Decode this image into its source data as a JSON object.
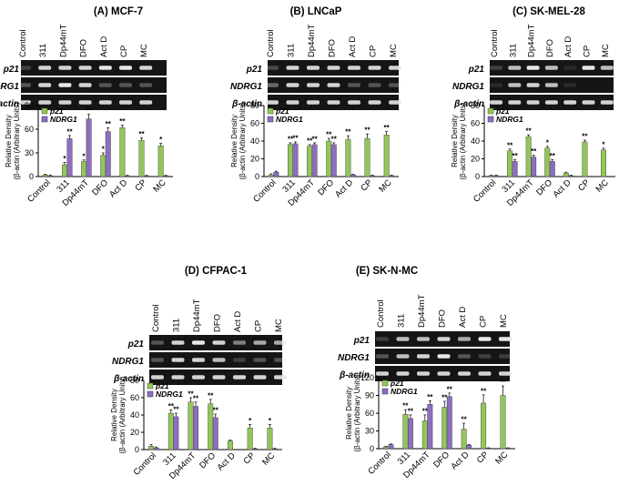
{
  "colors": {
    "p21": "#93c65a",
    "ndrg1": "#8d6ebf",
    "gel_bg": "#151515",
    "band": "#e8e8e8",
    "axis": "#000000"
  },
  "legend": {
    "series_a": "p21",
    "series_b": "NDRG1"
  },
  "chart_data": [
    {
      "id": "A",
      "type": "bar",
      "title": "(A) MCF-7",
      "categories": [
        "Control",
        "311",
        "Dp44mT",
        "DFO",
        "Act D",
        "CP",
        "MC"
      ],
      "gel_rows": [
        "p21",
        "NDRG1",
        "β-actin"
      ],
      "ylabel": "Relative Density (β-actin (Arbitrary Units)",
      "ylim": [
        0,
        90
      ],
      "yticks": [
        0,
        30,
        60,
        90
      ],
      "series": [
        {
          "name": "p21",
          "values": [
            2,
            15,
            19,
            27,
            62,
            46,
            39
          ],
          "errors": [
            1,
            3,
            2,
            3,
            3,
            3,
            3
          ],
          "stars": [
            "",
            "*",
            "*",
            "*",
            "**",
            "**",
            "*"
          ]
        },
        {
          "name": "NDRG1",
          "values": [
            1,
            48,
            73,
            57,
            1,
            1,
            1
          ],
          "errors": [
            1,
            4,
            6,
            5,
            0.5,
            0.5,
            0.5
          ],
          "stars": [
            "",
            "**",
            "**",
            "**",
            "",
            "",
            ""
          ]
        }
      ]
    },
    {
      "id": "B",
      "type": "bar",
      "title": "(B) LNCaP",
      "categories": [
        "Control",
        "311",
        "Dp44mT",
        "DFO",
        "Act D",
        "CP",
        "MC"
      ],
      "gel_rows": [
        "p21",
        "NDRG1",
        "β-actin"
      ],
      "ylabel": "Relative Density (β-actin (Arbitrary Units)",
      "ylim": [
        0,
        80
      ],
      "yticks": [
        0,
        20,
        40,
        60,
        80
      ],
      "series": [
        {
          "name": "p21",
          "values": [
            2,
            36,
            34,
            40,
            42,
            43,
            47
          ],
          "errors": [
            1,
            2,
            2,
            3,
            4,
            5,
            4
          ],
          "stars": [
            "",
            "**",
            "**",
            "**",
            "**",
            "**",
            "**"
          ]
        },
        {
          "name": "NDRG1",
          "values": [
            5,
            37,
            36,
            36,
            2,
            1,
            1
          ],
          "errors": [
            1,
            2,
            2,
            2,
            0.5,
            0.5,
            0.5
          ],
          "stars": [
            "",
            "**",
            "**",
            "**",
            "",
            "",
            ""
          ]
        }
      ]
    },
    {
      "id": "C",
      "type": "bar",
      "title": "(C) SK-MEL-28",
      "categories": [
        "Control",
        "311",
        "Dp44mT",
        "DFO",
        "Act D",
        "CP",
        "MC"
      ],
      "gel_rows": [
        "p21",
        "NDRG1",
        "β-actin"
      ],
      "ylabel": "Relative Density (β-actin (Arbitrary Units)",
      "ylim": [
        0,
        80
      ],
      "yticks": [
        0,
        20,
        40,
        60,
        80
      ],
      "series": [
        {
          "name": "p21",
          "values": [
            1,
            29,
            45,
            32,
            4,
            39,
            30
          ],
          "errors": [
            0.5,
            2,
            2,
            2,
            1,
            2,
            2
          ],
          "stars": [
            "",
            "**",
            "**",
            "*",
            "",
            "**",
            "*"
          ]
        },
        {
          "name": "NDRG1",
          "values": [
            1,
            17,
            22,
            17,
            1,
            0,
            0
          ],
          "errors": [
            0.5,
            2,
            2,
            2,
            0.5,
            0,
            0
          ],
          "stars": [
            "",
            "**",
            "**",
            "**",
            "",
            "",
            ""
          ]
        }
      ]
    },
    {
      "id": "D",
      "type": "bar",
      "title": "(D) CFPAC-1",
      "categories": [
        "Control",
        "311",
        "Dp44mT",
        "DFO",
        "Act D",
        "CP",
        "MC"
      ],
      "gel_rows": [
        "p21",
        "NDRG1",
        "β-actin"
      ],
      "ylabel": "Relative Density (β-actin (Arbitrary Units)",
      "ylim": [
        0,
        80
      ],
      "yticks": [
        0,
        20,
        40,
        60,
        80
      ],
      "series": [
        {
          "name": "p21",
          "values": [
            4,
            42,
            55,
            53,
            10,
            25,
            25
          ],
          "errors": [
            2,
            4,
            5,
            5,
            1,
            4,
            4
          ],
          "stars": [
            "",
            "**",
            "**",
            "**",
            "",
            "*",
            "*"
          ]
        },
        {
          "name": "NDRG1",
          "values": [
            2,
            38,
            50,
            37,
            0,
            1,
            1
          ],
          "errors": [
            1,
            4,
            5,
            4,
            0,
            0.5,
            0.5
          ],
          "stars": [
            "",
            "**",
            "**",
            "**",
            "",
            "",
            ""
          ]
        }
      ]
    },
    {
      "id": "E",
      "type": "bar",
      "title": "(E) SK-N-MC",
      "categories": [
        "Control",
        "311",
        "Dp44mT",
        "DFO",
        "Act D",
        "CP",
        "MC"
      ],
      "gel_rows": [
        "p21",
        "NDRG1",
        "β-actin"
      ],
      "ylabel": "Relative Density (β-actin (Arbitrary Units)",
      "ylim": [
        0,
        120
      ],
      "yticks": [
        0,
        30,
        60,
        90,
        120
      ],
      "series": [
        {
          "name": "p21",
          "values": [
            3,
            58,
            47,
            70,
            33,
            77,
            90
          ],
          "errors": [
            1,
            8,
            10,
            10,
            10,
            14,
            16
          ],
          "stars": [
            "",
            "**",
            "**",
            "**",
            "**",
            "**",
            "**"
          ]
        },
        {
          "name": "NDRG1",
          "values": [
            7,
            51,
            75,
            88,
            6,
            1,
            1
          ],
          "errors": [
            1,
            6,
            6,
            6,
            1,
            0.5,
            0.5
          ],
          "stars": [
            "",
            "**",
            "**",
            "**",
            "",
            "",
            ""
          ]
        }
      ]
    }
  ]
}
